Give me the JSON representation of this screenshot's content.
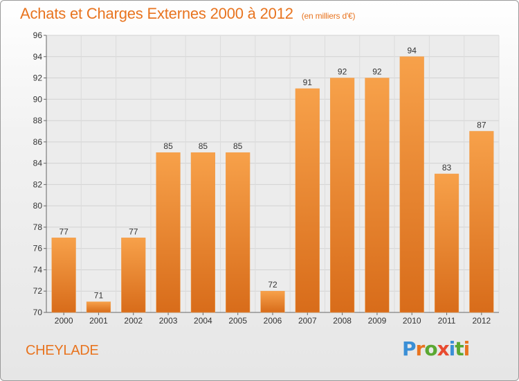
{
  "header": {
    "title": "Achats et Charges Externes 2000 à 2012",
    "subtitle": "(en milliers d'€)"
  },
  "footer": {
    "town": "CHEYLADE",
    "logo_text": "Proxiti"
  },
  "colors": {
    "accent": "#e8741f",
    "bar_top": "#f7a14a",
    "bar_bottom": "#d86c1a",
    "logo_letters": [
      "#3a8fd6",
      "#e8741f",
      "#5aa832",
      "#e84a2f",
      "#3a8fd6",
      "#5aa832",
      "#e8741f"
    ]
  },
  "chart_data": {
    "type": "bar",
    "categories": [
      "2000",
      "2001",
      "2002",
      "2003",
      "2004",
      "2005",
      "2006",
      "2007",
      "2008",
      "2009",
      "2010",
      "2011",
      "2012"
    ],
    "values": [
      77,
      71,
      77,
      85,
      85,
      85,
      72,
      91,
      92,
      92,
      94,
      83,
      87
    ],
    "title": "Achats et Charges Externes 2000 à 2012",
    "subtitle": "(en milliers d'€)",
    "ylim": [
      70,
      96
    ],
    "yticks": [
      70,
      72,
      74,
      76,
      78,
      80,
      82,
      84,
      86,
      88,
      90,
      92,
      94,
      96
    ],
    "grid": true,
    "data_labels": true
  }
}
